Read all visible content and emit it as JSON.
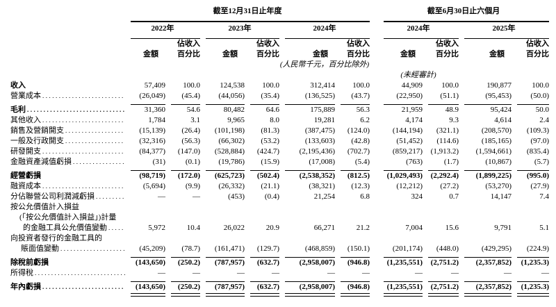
{
  "table": {
    "groups": [
      {
        "title": "截至12月31日止年度",
        "years": [
          "2022年",
          "2023年",
          "2024年"
        ]
      },
      {
        "title": "截至6月30日止六個月",
        "years": [
          "2024年",
          "2025年"
        ]
      }
    ],
    "amount_header": "金額",
    "pct_header_line1": "佔收入",
    "pct_header_line2": "百分比",
    "unit_note": "(人民幣千元，百分比除外)",
    "unaudited_note": "(未經審計)",
    "rows": [
      {
        "lines": [
          {
            "text": "收入",
            "indent": 0
          }
        ],
        "bold_label": true,
        "bold_values": false,
        "leader": false,
        "rule_below": null,
        "values": [
          "57,409",
          "100.0",
          "124,538",
          "100.0",
          "312,414",
          "100.0",
          "44,909",
          "100.0",
          "190,877",
          "100.0"
        ]
      },
      {
        "lines": [
          {
            "text": "營業成本",
            "indent": 0
          }
        ],
        "bold_label": false,
        "bold_values": false,
        "leader": true,
        "rule_below": "single",
        "values": [
          "(26,049)",
          "(45.4)",
          "(44,056)",
          "(35.4)",
          "(136,525)",
          "(43.7)",
          "(22,950)",
          "(51.1)",
          "(95,453)",
          "(50.0)"
        ]
      },
      {
        "lines": [
          {
            "text": "毛利",
            "indent": 0
          }
        ],
        "bold_label": true,
        "bold_values": false,
        "leader": true,
        "rule_below": null,
        "values": [
          "31,360",
          "54.6",
          "80,482",
          "64.6",
          "175,889",
          "56.3",
          "21,959",
          "48.9",
          "95,424",
          "50.0"
        ]
      },
      {
        "lines": [
          {
            "text": "其他收入",
            "indent": 0
          }
        ],
        "bold_label": false,
        "bold_values": false,
        "leader": true,
        "rule_below": null,
        "values": [
          "1,784",
          "3.1",
          "9,965",
          "8.0",
          "19,281",
          "6.2",
          "4,174",
          "9.3",
          "4,614",
          "2.4"
        ]
      },
      {
        "lines": [
          {
            "text": "銷售及營銷開支",
            "indent": 0
          }
        ],
        "bold_label": false,
        "bold_values": false,
        "leader": true,
        "rule_below": null,
        "values": [
          "(15,139)",
          "(26.4)",
          "(101,198)",
          "(81.3)",
          "(387,475)",
          "(124.0)",
          "(144,194)",
          "(321.1)",
          "(208,570)",
          "(109.3)"
        ]
      },
      {
        "lines": [
          {
            "text": "一般及行政開支",
            "indent": 0
          }
        ],
        "bold_label": false,
        "bold_values": false,
        "leader": true,
        "rule_below": null,
        "values": [
          "(32,316)",
          "(56.3)",
          "(66,302)",
          "(53.2)",
          "(133,603)",
          "(42.8)",
          "(51,452)",
          "(114.6)",
          "(185,165)",
          "(97.0)"
        ]
      },
      {
        "lines": [
          {
            "text": "研發開支",
            "indent": 0
          }
        ],
        "bold_label": false,
        "bold_values": false,
        "leader": true,
        "rule_below": null,
        "values": [
          "(84,377)",
          "(147.0)",
          "(528,884)",
          "(424.7)",
          "(2,195,436)",
          "(702.7)",
          "(859,217)",
          "(1,913.2)",
          "(1,594,661)",
          "(835.4)"
        ]
      },
      {
        "lines": [
          {
            "text": "金融資產減值虧損",
            "indent": 0
          }
        ],
        "bold_label": false,
        "bold_values": false,
        "leader": true,
        "rule_below": "single",
        "values": [
          "(31)",
          "(0.1)",
          "(19,786)",
          "(15.9)",
          "(17,008)",
          "(5.4)",
          "(763)",
          "(1.7)",
          "(10,867)",
          "(5.7)"
        ]
      },
      {
        "lines": [
          {
            "text": "經營虧損",
            "indent": 0
          }
        ],
        "bold_label": true,
        "bold_values": true,
        "leader": false,
        "rule_below": null,
        "values": [
          "(98,719)",
          "(172.0)",
          "(625,723)",
          "(502.4)",
          "(2,538,352)",
          "(812.5)",
          "(1,029,493)",
          "(2,292.4)",
          "(1,899,225)",
          "(995.0)"
        ]
      },
      {
        "lines": [
          {
            "text": "融資成本",
            "indent": 0
          }
        ],
        "bold_label": false,
        "bold_values": false,
        "leader": true,
        "rule_below": null,
        "values": [
          "(5,694)",
          "(9.9)",
          "(26,332)",
          "(21.1)",
          "(38,321)",
          "(12.3)",
          "(12,212)",
          "(27.2)",
          "(53,270)",
          "(27.9)"
        ]
      },
      {
        "lines": [
          {
            "text": "分佔聯營公司利潤減虧損",
            "indent": 0
          }
        ],
        "bold_label": false,
        "bold_values": false,
        "leader": true,
        "rule_below": null,
        "values": [
          "—",
          "—",
          "(453)",
          "(0.4)",
          "21,254",
          "6.8",
          "324",
          "0.7",
          "14,147",
          "7.4"
        ]
      },
      {
        "lines": [
          {
            "text": "按公允價值計入損益",
            "indent": 0
          },
          {
            "text": "(「按公允價值計入損益」)計量",
            "indent": 13
          },
          {
            "text": "的金融工具公允價值變動",
            "indent": 18
          }
        ],
        "bold_label": false,
        "bold_values": false,
        "leader": true,
        "rule_below": null,
        "values": [
          "5,972",
          "10.4",
          "26,022",
          "20.9",
          "66,271",
          "21.2",
          "7,004",
          "15.6",
          "9,791",
          "5.1"
        ]
      },
      {
        "lines": [
          {
            "text": "向投資者發行的金融工具的",
            "indent": 0
          },
          {
            "text": "賬面值變動",
            "indent": 15
          }
        ],
        "bold_label": false,
        "bold_values": false,
        "leader": true,
        "rule_below": "single",
        "values": [
          "(45,209)",
          "(78.7)",
          "(161,471)",
          "(129.7)",
          "(468,859)",
          "(150.1)",
          "(201,174)",
          "(448.0)",
          "(429,295)",
          "(224.9)"
        ]
      },
      {
        "lines": [
          {
            "text": "除稅前虧損",
            "indent": 0
          }
        ],
        "bold_label": true,
        "bold_values": true,
        "leader": false,
        "rule_below": null,
        "values": [
          "(143,650)",
          "(250.2)",
          "(787,957)",
          "(632.7)",
          "(2,958,007)",
          "(946.8)",
          "(1,235,551)",
          "(2,751.2)",
          "(2,357,852)",
          "(1,235.3)"
        ]
      },
      {
        "lines": [
          {
            "text": "所得稅",
            "indent": 0
          }
        ],
        "bold_label": false,
        "bold_values": false,
        "leader": true,
        "rule_below": "single",
        "values": [
          "—",
          "—",
          "—",
          "—",
          "—",
          "—",
          "—",
          "—",
          "—",
          "—"
        ]
      },
      {
        "lines": [
          {
            "text": "年內虧損",
            "indent": 0
          }
        ],
        "bold_label": true,
        "bold_values": true,
        "leader": true,
        "rule_below": "double",
        "values": [
          "(143,650)",
          "(250.2)",
          "(787,957)",
          "(632.7)",
          "(2,958,007)",
          "(946.8)",
          "(1,235,551)",
          "(2,751.2)",
          "(2,357,852)",
          "(1,235.3)"
        ]
      }
    ]
  }
}
